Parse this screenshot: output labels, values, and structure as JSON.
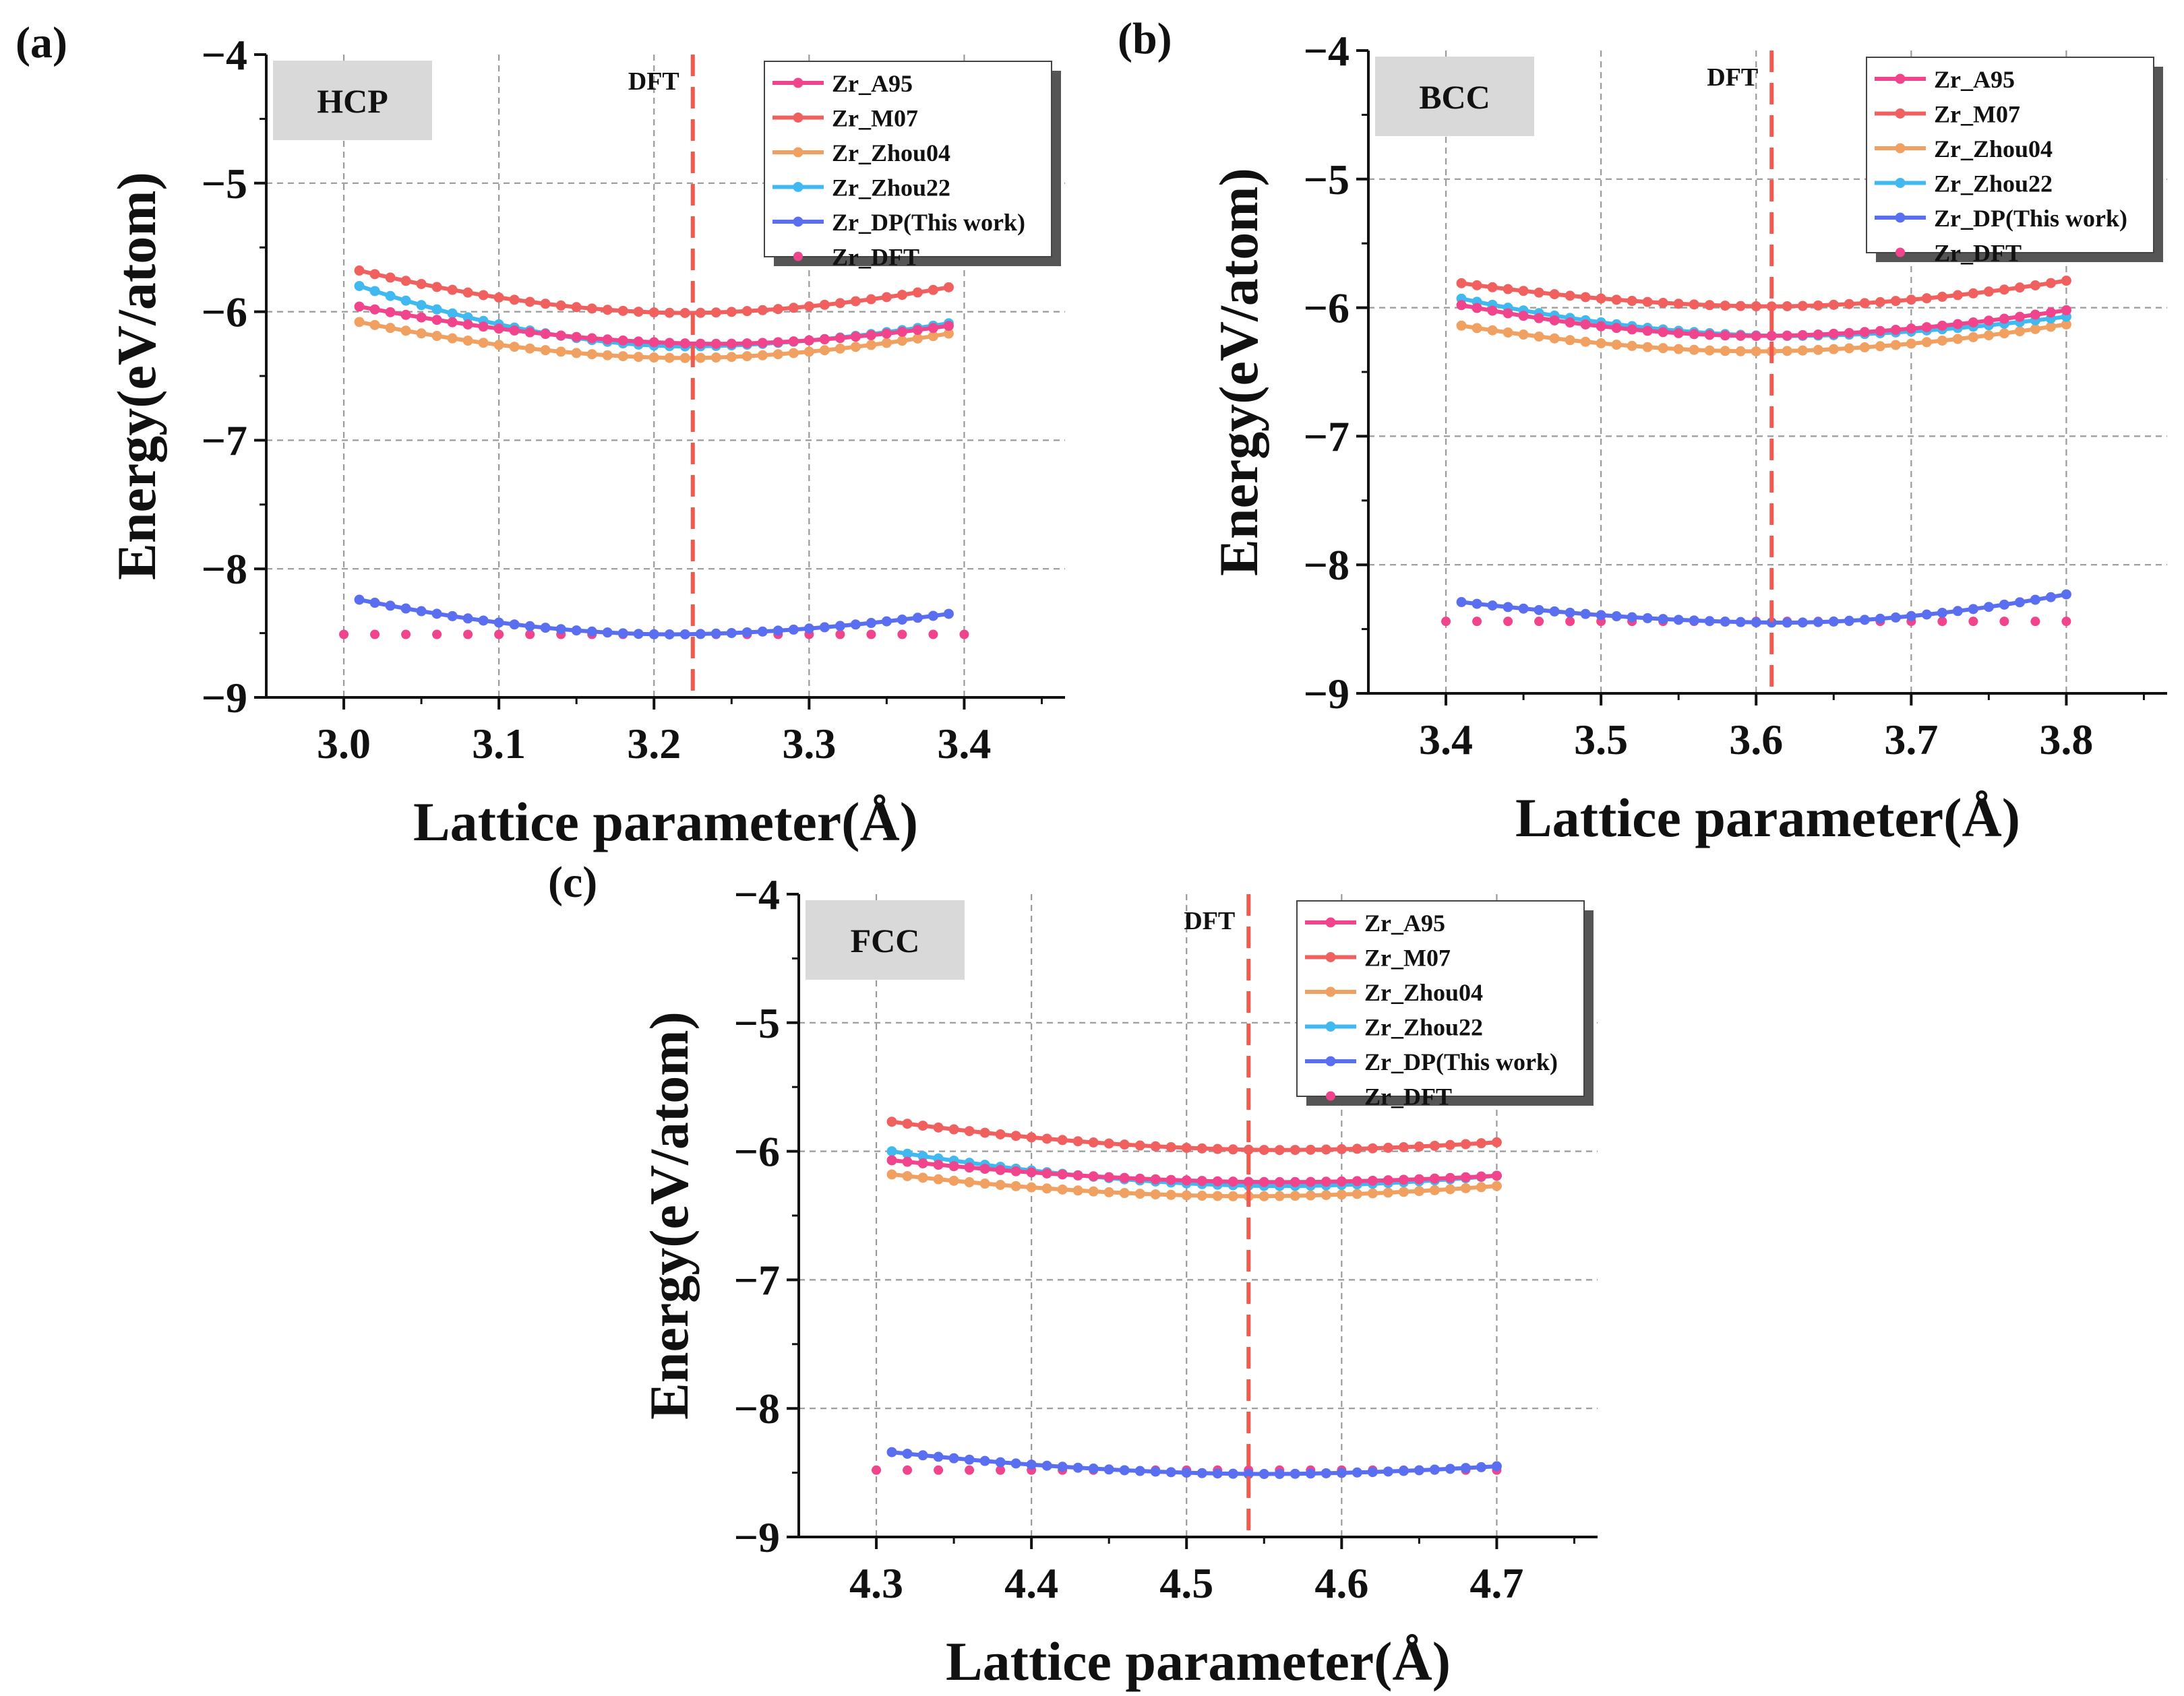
{
  "figure": {
    "panels": [
      {
        "letter": "(a)",
        "phase_label": "HCP",
        "dft_label": "DFT"
      },
      {
        "letter": "(b)",
        "phase_label": "BCC",
        "dft_label": "DFT"
      },
      {
        "letter": "(c)",
        "phase_label": "FCC",
        "dft_label": "DFT"
      }
    ]
  },
  "chart_data": [
    {
      "type": "line",
      "panel": "(a)",
      "title": "HCP",
      "xlabel": "Lattice parameter(Å)",
      "ylabel": "Energy(eV/atom)",
      "xlim": [
        2.95,
        3.465
      ],
      "ylim": [
        -9,
        -4
      ],
      "xticks": [
        3.0,
        3.1,
        3.2,
        3.3,
        3.4
      ],
      "xtick_labels": [
        "3.0",
        "3.1",
        "3.2",
        "3.3",
        "3.4"
      ],
      "yticks": [
        -4,
        -5,
        -6,
        -7,
        -8,
        -9
      ],
      "ytick_labels": [
        "−4",
        "−5",
        "−6",
        "−7",
        "−8",
        "−9"
      ],
      "grid": true,
      "dft_line": 3.225,
      "dft_label": "DFT",
      "legend_position": "top-right",
      "series": [
        {
          "name": "Zr_A95",
          "color": "#f0458c",
          "style": "line-marker",
          "x_range": [
            3.01,
            3.39
          ],
          "n": 39,
          "min_x": 3.24,
          "min_y": -6.25,
          "y_left": -5.96,
          "y_right": -6.11
        },
        {
          "name": "Zr_M07",
          "color": "#f0605f",
          "style": "line-marker",
          "x_range": [
            3.01,
            3.39
          ],
          "n": 39,
          "min_x": 3.22,
          "min_y": -6.01,
          "y_left": -5.68,
          "y_right": -5.81
        },
        {
          "name": "Zr_Zhou04",
          "color": "#f0a060",
          "style": "line-marker",
          "x_range": [
            3.01,
            3.39
          ],
          "n": 39,
          "min_x": 3.22,
          "min_y": -6.36,
          "y_left": -6.08,
          "y_right": -6.17
        },
        {
          "name": "Zr_Zhou22",
          "color": "#40b8f0",
          "style": "line-marker",
          "x_range": [
            3.01,
            3.39
          ],
          "n": 39,
          "min_x": 3.22,
          "min_y": -6.27,
          "y_left": -5.8,
          "y_right": -6.09
        },
        {
          "name": "Zr_DP(This work)",
          "color": "#5a6ef0",
          "style": "line-marker",
          "x_range": [
            3.01,
            3.39
          ],
          "n": 39,
          "min_x": 3.21,
          "min_y": -8.51,
          "y_left": -8.24,
          "y_right": -8.35
        },
        {
          "name": "Zr_DFT",
          "color": "#f0458c",
          "style": "dots",
          "x_range": [
            3.0,
            3.4
          ],
          "n": 21,
          "y_const": -8.51
        }
      ]
    },
    {
      "type": "line",
      "panel": "(b)",
      "title": "BCC",
      "xlabel": "Lattice parameter(Å)",
      "ylabel": "Energy(eV/atom)",
      "xlim": [
        3.35,
        3.865
      ],
      "ylim": [
        -9,
        -4
      ],
      "xticks": [
        3.4,
        3.5,
        3.6,
        3.7,
        3.8
      ],
      "xtick_labels": [
        "3.4",
        "3.5",
        "3.6",
        "3.7",
        "3.8"
      ],
      "yticks": [
        -4,
        -5,
        -6,
        -7,
        -8,
        -9
      ],
      "ytick_labels": [
        "−4",
        "−5",
        "−6",
        "−7",
        "−8",
        "−9"
      ],
      "grid": true,
      "dft_line": 3.61,
      "dft_label": "DFT",
      "legend_position": "top-right",
      "series": [
        {
          "name": "Zr_A95",
          "color": "#f0458c",
          "style": "line-marker",
          "x_range": [
            3.41,
            3.8
          ],
          "n": 40,
          "min_x": 3.6,
          "min_y": -6.22,
          "y_left": -5.98,
          "y_right": -6.02
        },
        {
          "name": "Zr_M07",
          "color": "#f0605f",
          "style": "line-marker",
          "x_range": [
            3.41,
            3.8
          ],
          "n": 40,
          "min_x": 3.61,
          "min_y": -5.99,
          "y_left": -5.81,
          "y_right": -5.79
        },
        {
          "name": "Zr_Zhou04",
          "color": "#f0a060",
          "style": "line-marker",
          "x_range": [
            3.41,
            3.8
          ],
          "n": 40,
          "min_x": 3.6,
          "min_y": -6.34,
          "y_left": -6.14,
          "y_right": -6.13
        },
        {
          "name": "Zr_Zhou22",
          "color": "#40b8f0",
          "style": "line-marker",
          "x_range": [
            3.41,
            3.8
          ],
          "n": 40,
          "min_x": 3.62,
          "min_y": -6.22,
          "y_left": -5.93,
          "y_right": -6.07
        },
        {
          "name": "Zr_DP(This work)",
          "color": "#5a6ef0",
          "style": "line-marker",
          "x_range": [
            3.41,
            3.8
          ],
          "n": 40,
          "min_x": 3.62,
          "min_y": -8.45,
          "y_left": -8.29,
          "y_right": -8.23
        },
        {
          "name": "Zr_DFT",
          "color": "#f0458c",
          "style": "dots",
          "x_range": [
            3.4,
            3.8
          ],
          "n": 21,
          "y_const": -8.44
        }
      ]
    },
    {
      "type": "line",
      "panel": "(c)",
      "title": "FCC",
      "xlabel": "Lattice parameter(Å)",
      "ylabel": "Energy(eV/atom)",
      "xlim": [
        4.25,
        4.765
      ],
      "ylim": [
        -9,
        -4
      ],
      "xticks": [
        4.3,
        4.4,
        4.5,
        4.6,
        4.7
      ],
      "xtick_labels": [
        "4.3",
        "4.4",
        "4.5",
        "4.6",
        "4.7"
      ],
      "yticks": [
        -4,
        -5,
        -6,
        -7,
        -8,
        -9
      ],
      "ytick_labels": [
        "−4",
        "−5",
        "−6",
        "−7",
        "−8",
        "−9"
      ],
      "grid": true,
      "dft_line": 4.54,
      "dft_label": "DFT",
      "legend_position": "top-right",
      "series": [
        {
          "name": "Zr_A95",
          "color": "#f0458c",
          "style": "line-marker",
          "x_range": [
            4.31,
            4.7
          ],
          "n": 40,
          "min_x": 4.56,
          "min_y": -6.24,
          "y_left": -6.07,
          "y_right": -6.19
        },
        {
          "name": "Zr_M07",
          "color": "#f0605f",
          "style": "line-marker",
          "x_range": [
            4.31,
            4.7
          ],
          "n": 40,
          "min_x": 4.56,
          "min_y": -5.99,
          "y_left": -5.77,
          "y_right": -5.93
        },
        {
          "name": "Zr_Zhou04",
          "color": "#f0a060",
          "style": "line-marker",
          "x_range": [
            4.31,
            4.7
          ],
          "n": 40,
          "min_x": 4.54,
          "min_y": -6.35,
          "y_left": -6.18,
          "y_right": -6.27
        },
        {
          "name": "Zr_Zhou22",
          "color": "#40b8f0",
          "style": "line-marker",
          "x_range": [
            4.31,
            4.7
          ],
          "n": 40,
          "min_x": 4.56,
          "min_y": -6.27,
          "y_left": -6.0,
          "y_right": -6.19
        },
        {
          "name": "Zr_DP(This work)",
          "color": "#5a6ef0",
          "style": "line-marker",
          "x_range": [
            4.31,
            4.7
          ],
          "n": 40,
          "min_x": 4.55,
          "min_y": -8.51,
          "y_left": -8.34,
          "y_right": -8.45
        },
        {
          "name": "Zr_DFT",
          "color": "#f0458c",
          "style": "dots",
          "x_range": [
            4.3,
            4.7
          ],
          "n": 21,
          "y_const": -8.48
        }
      ]
    }
  ]
}
